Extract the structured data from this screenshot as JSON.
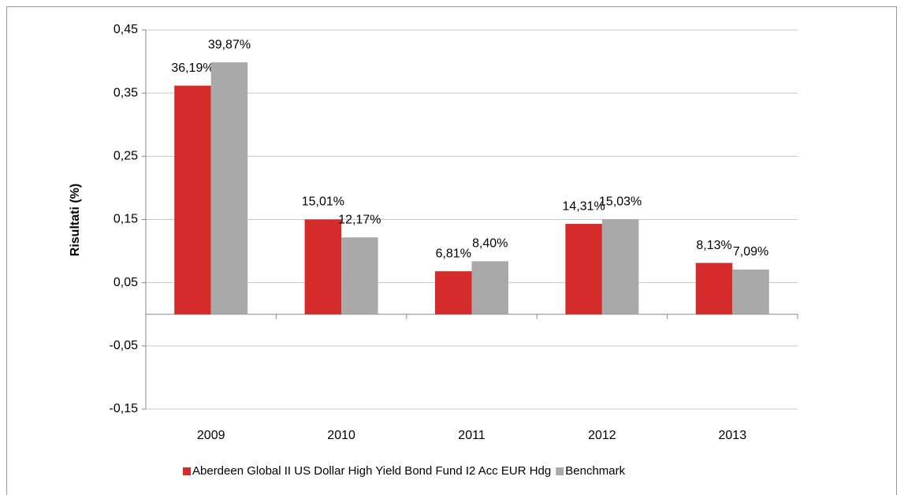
{
  "chart_data": {
    "type": "bar",
    "ylabel": "Risultati (%)",
    "categories": [
      "2009",
      "2010",
      "2011",
      "2012",
      "2013"
    ],
    "series": [
      {
        "name": "Aberdeen Global II US Dollar High Yield Bond Fund I2 Acc EUR Hdg",
        "color": "#d52b2b",
        "values": [
          0.3619,
          0.1501,
          0.0681,
          0.1431,
          0.0813
        ],
        "value_labels": [
          "36,19%",
          "15,01%",
          "6,81%",
          "14,31%",
          "8,13%"
        ]
      },
      {
        "name": "Benchmark",
        "color": "#a9a9a9",
        "values": [
          0.3987,
          0.1217,
          0.084,
          0.1503,
          0.0709
        ],
        "value_labels": [
          "39,87%",
          "12,17%",
          "8,40%",
          "15,03%",
          "7,09%"
        ]
      }
    ],
    "ylim": [
      -0.15,
      0.45
    ],
    "yticks": [
      {
        "value": -0.15,
        "label": "-0,15"
      },
      {
        "value": -0.05,
        "label": "-0,05"
      },
      {
        "value": 0.05,
        "label": "0,05"
      },
      {
        "value": 0.15,
        "label": "0,15"
      },
      {
        "value": 0.25,
        "label": "0,25"
      },
      {
        "value": 0.35,
        "label": "0,35"
      },
      {
        "value": 0.45,
        "label": "0,45"
      }
    ],
    "grid": true
  }
}
